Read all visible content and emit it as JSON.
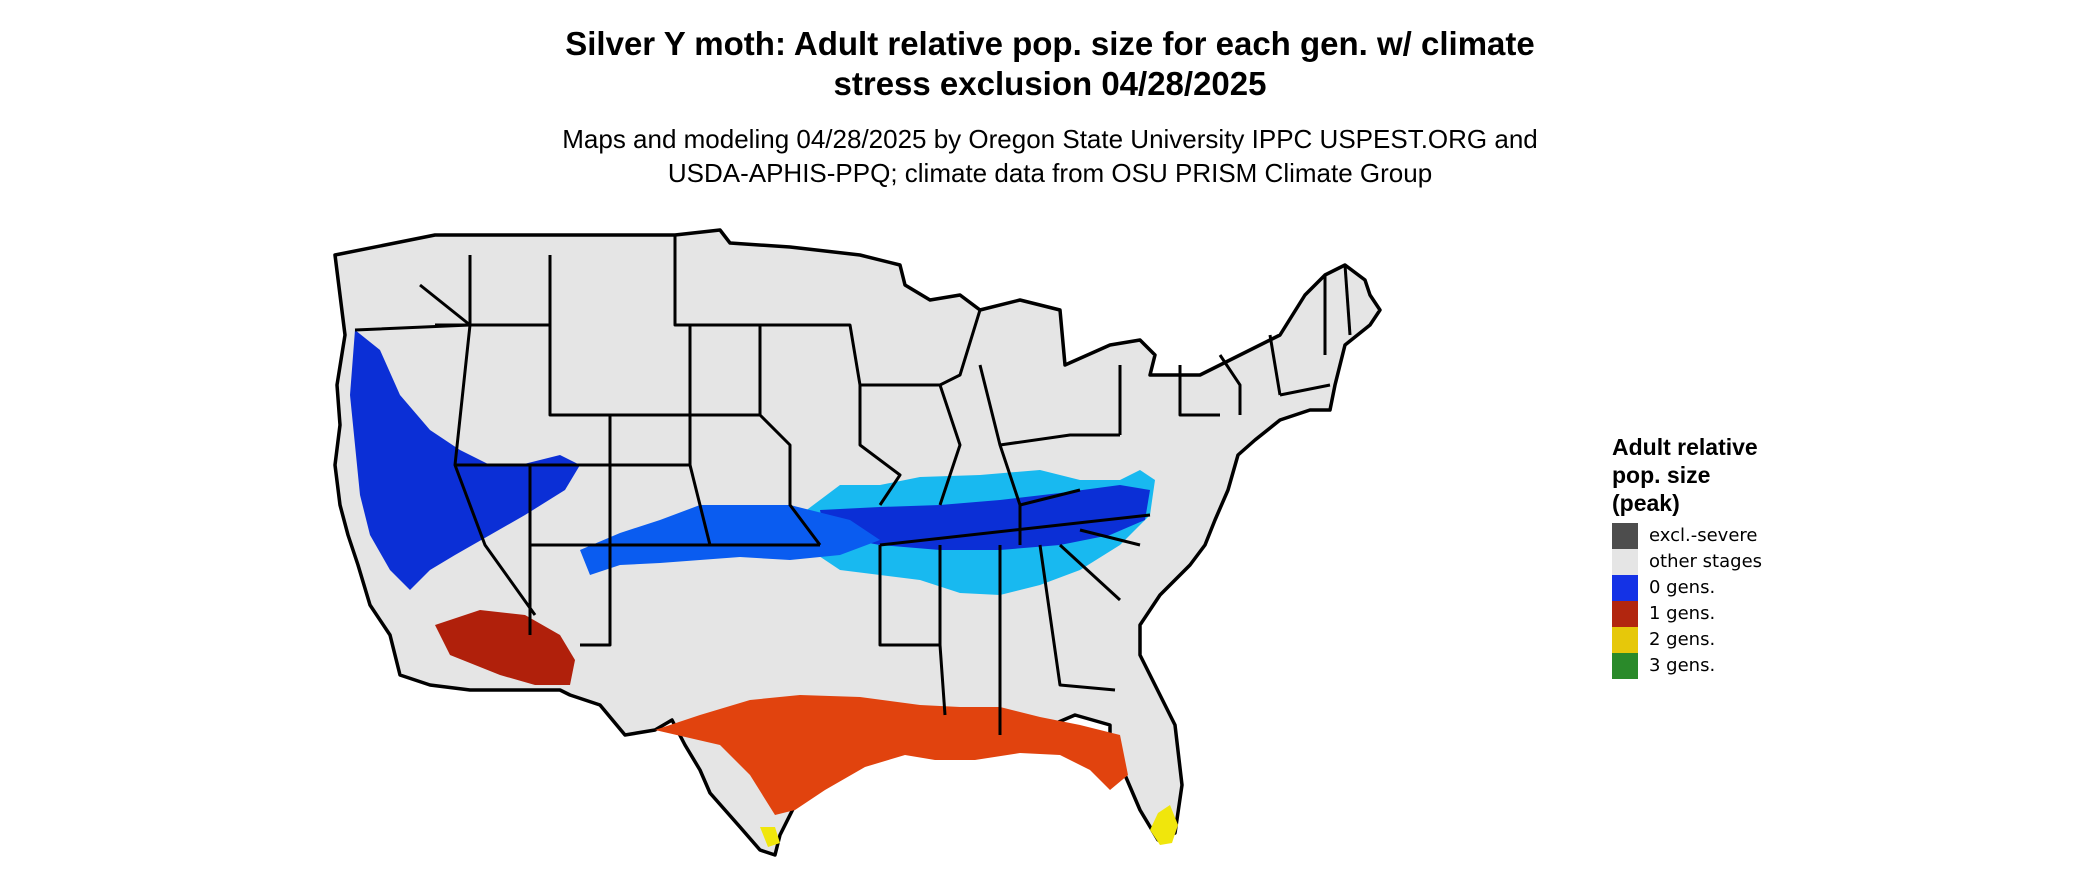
{
  "title_line1": "Silver Y moth: Adult relative pop. size for each gen. w/ climate",
  "title_line2": "stress exclusion 04/28/2025",
  "subtitle_line1": "Maps and modeling 04/28/2025 by Oregon State University IPPC USPEST.ORG and",
  "subtitle_line2": "USDA-APHIS-PPQ; climate data from OSU PRISM Climate Group",
  "map": {
    "region": "Contiguous United States",
    "colors": {
      "land": "#e5e5e5",
      "border": "#000000",
      "light_blue": "#18b9f0",
      "blue": "#0a5cf0",
      "dark_blue": "#0b2fd6",
      "red_orange": "#e1430e",
      "dark_red": "#b0200b",
      "yellow": "#f0e60c"
    }
  },
  "legend": {
    "title_line1": "Adult relative",
    "title_line2": "pop. size",
    "title_line3": "(peak)",
    "items": [
      {
        "label": "excl.-severe",
        "color": "#4d4d4d"
      },
      {
        "label": "other stages",
        "color": "#e5e5e5"
      },
      {
        "label": "0 gens.",
        "color": "#1432e6"
      },
      {
        "label": "1 gens.",
        "color": "#b2260f"
      },
      {
        "label": "2 gens.",
        "color": "#e6c80a"
      },
      {
        "label": "3 gens.",
        "color": "#2a8a2a"
      }
    ]
  }
}
